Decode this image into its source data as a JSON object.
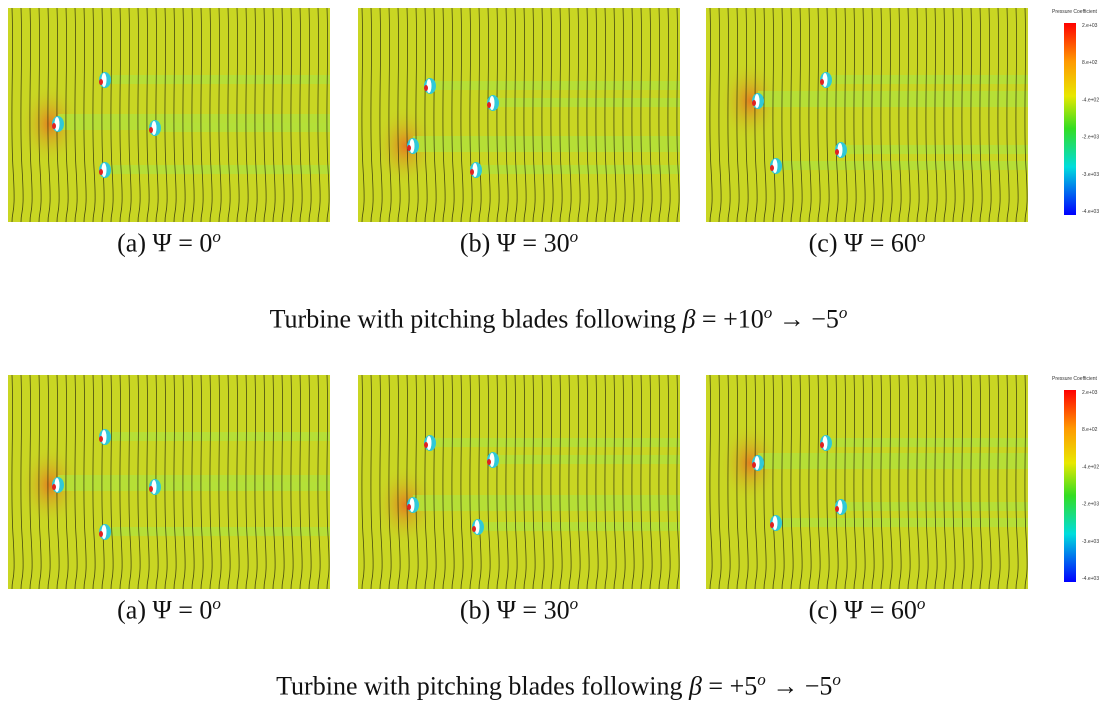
{
  "figure": {
    "rows": [
      {
        "panels": [
          {
            "label": "(a)",
            "symbol": "Ψ",
            "value": "= 0",
            "sup": "o"
          },
          {
            "label": "(b)",
            "symbol": "Ψ",
            "value": "= 30",
            "sup": "o"
          },
          {
            "label": "(c)",
            "symbol": "Ψ",
            "value": "= 60",
            "sup": "o"
          }
        ],
        "caption": {
          "text": "Turbine with pitching blades following",
          "symbol": "β",
          "from": "= +10",
          "to": "→ −5",
          "sup": "o"
        },
        "colorbar": {
          "title": "Pressure Coefficient",
          "ticks": [
            "2.e+03",
            "8.e+02",
            "-4.e+02",
            "-2.e+03",
            "-3.e+03",
            "-4.e+03"
          ]
        }
      },
      {
        "panels": [
          {
            "label": "(a)",
            "symbol": "Ψ",
            "value": "= 0",
            "sup": "o"
          },
          {
            "label": "(b)",
            "symbol": "Ψ",
            "value": "= 30",
            "sup": "o"
          },
          {
            "label": "(c)",
            "symbol": "Ψ",
            "value": "= 60",
            "sup": "o"
          }
        ],
        "caption": {
          "text": "Turbine with pitching blades following",
          "symbol": "β",
          "from": "= +5",
          "to": "→ −5",
          "sup": "o"
        },
        "colorbar": {
          "title": "Pressure Coefficient",
          "ticks": [
            "2.e+03",
            "8.e+02",
            "-4.e+02",
            "-2.e+03",
            "-3.e+03",
            "-4.e+03"
          ]
        }
      }
    ]
  }
}
